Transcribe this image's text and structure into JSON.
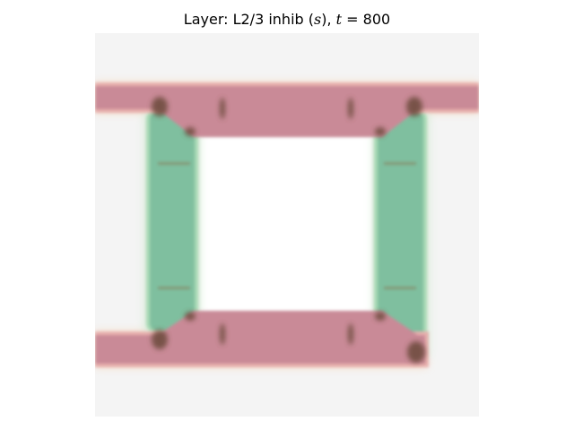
{
  "figure": {
    "title_prefix": "Layer: L2/3 inhib (",
    "title_var": "s",
    "title_mid": "), ",
    "title_t": "t",
    "title_eq": " = ",
    "title_value": "800"
  },
  "colors": {
    "background": "#f4f4f4",
    "inner": "#ffffff",
    "horizontal_band": "#c98a97",
    "horizontal_band_edge": "#e8b0ae",
    "vertical_band": "#7fbf9f",
    "vertical_band_edge": "#a9d9b5",
    "junction": "#6b4a3a",
    "glow": "#f3c9a0"
  }
}
